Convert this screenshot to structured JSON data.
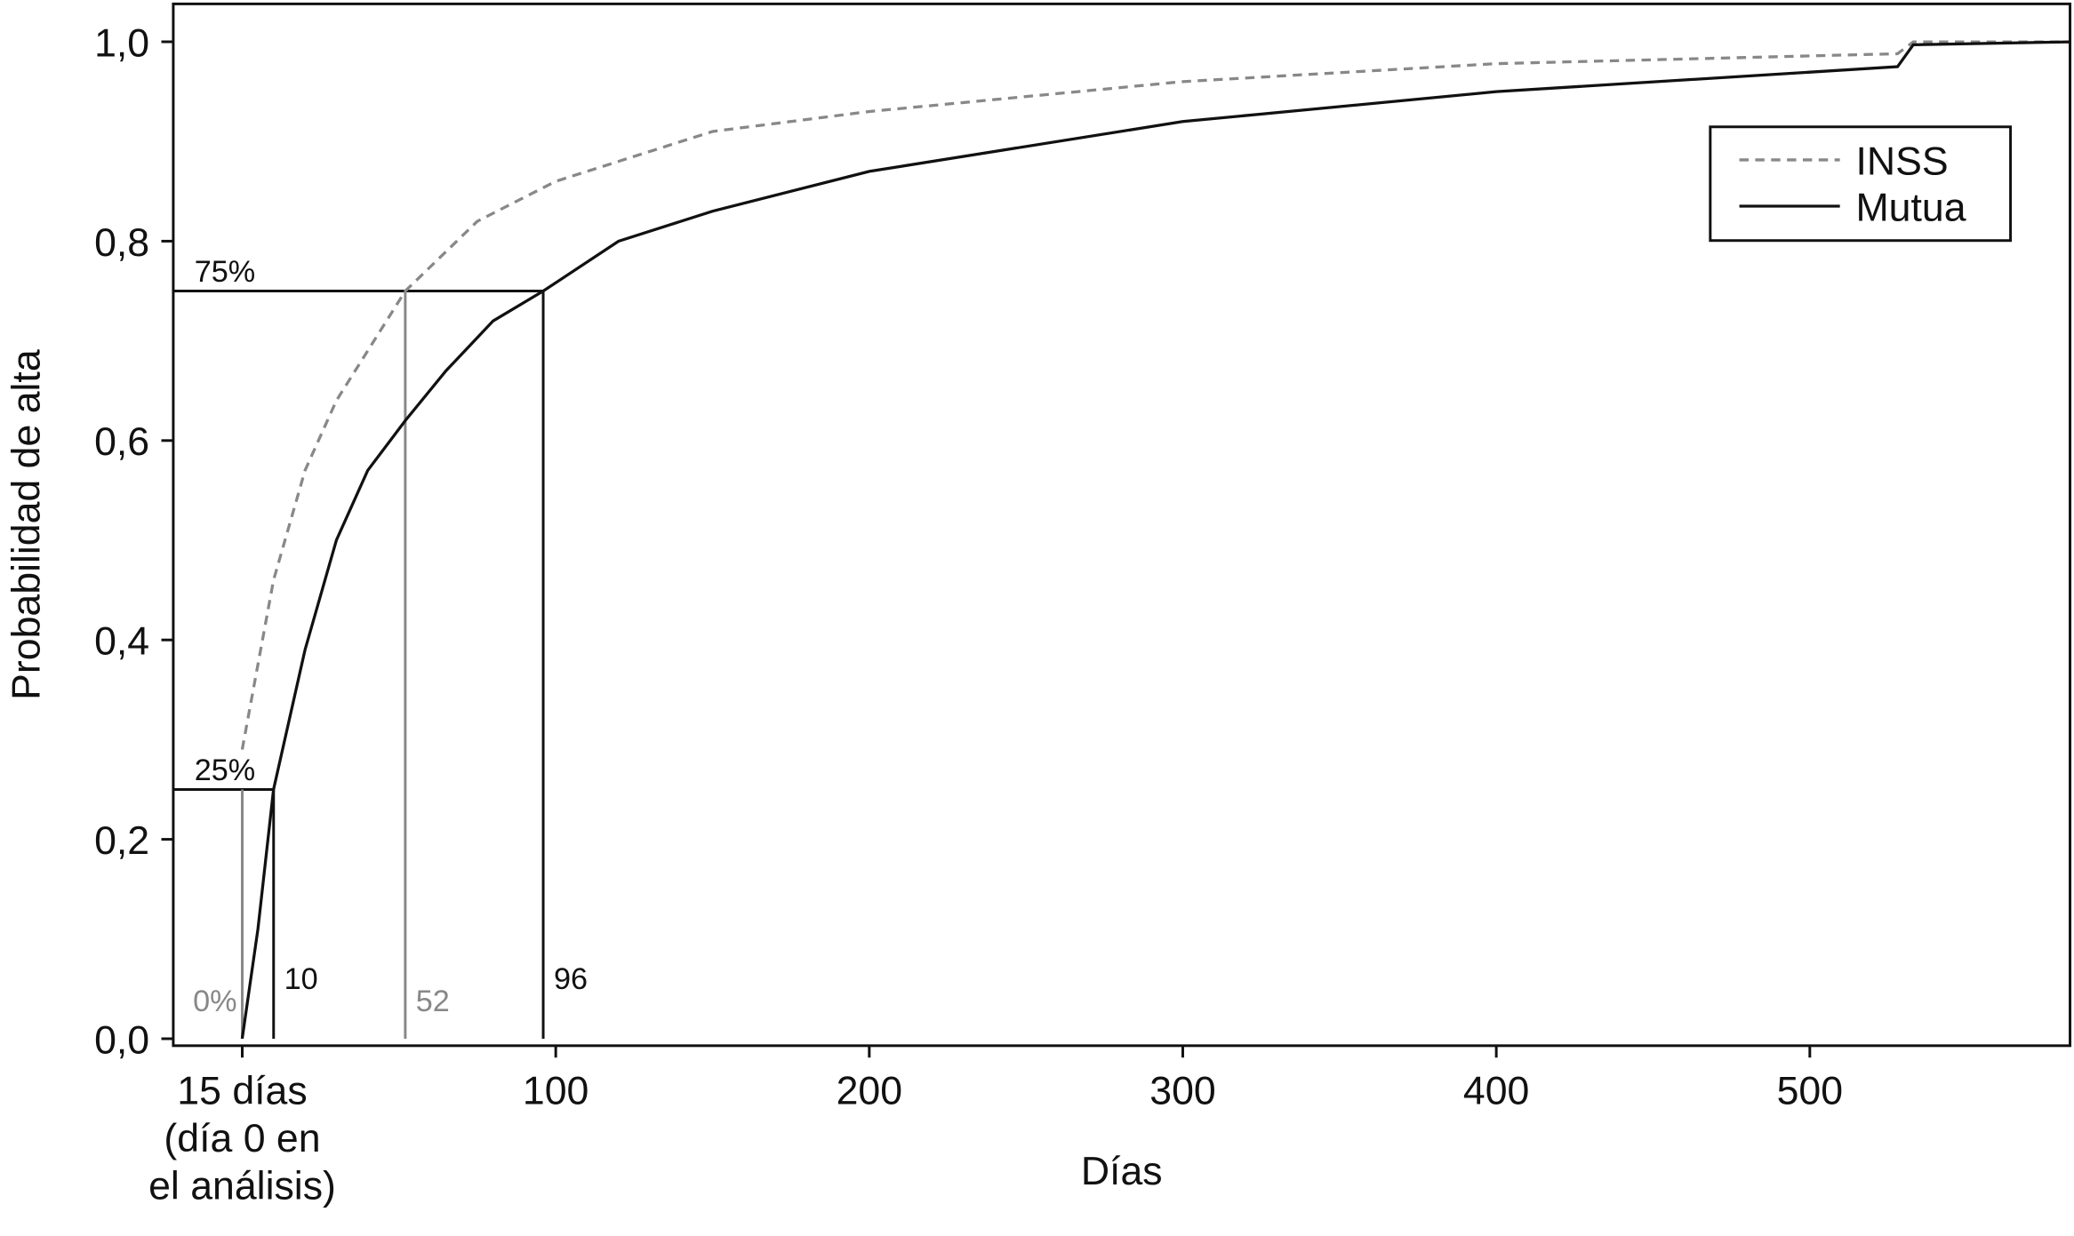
{
  "chart_data": {
    "type": "line",
    "y_label": "Probabilidad de alta",
    "x_label": "Días",
    "xlim": [
      -22,
      583
    ],
    "ylim": [
      -0.007,
      1.038
    ],
    "xticks": [
      {
        "value": 0,
        "label": "15 días\n(día 0 en\nel análisis)"
      },
      100,
      200,
      300,
      400,
      500
    ],
    "yticks": [
      {
        "value": 0,
        "label": "0,0"
      },
      {
        "value": 0.2,
        "label": "0,2"
      },
      {
        "value": 0.4,
        "label": "0,4"
      },
      {
        "value": 0.6,
        "label": "0,6"
      },
      {
        "value": 0.8,
        "label": "0,8"
      },
      {
        "value": 1.0,
        "label": "1,0"
      }
    ],
    "legend": "upper right",
    "series": [
      {
        "name": "INSS",
        "color": "#888888",
        "dashed": true,
        "x": [
          0,
          10,
          20,
          30,
          52,
          75,
          100,
          150,
          200,
          300,
          400,
          528,
          533,
          583
        ],
        "values": [
          0.29,
          0.46,
          0.57,
          0.64,
          0.75,
          0.82,
          0.86,
          0.91,
          0.93,
          0.96,
          0.978,
          0.988,
          1.0,
          1.0
        ]
      },
      {
        "name": "Mutua",
        "color": "#111111",
        "dashed": false,
        "x": [
          0,
          5,
          10,
          20,
          30,
          40,
          52,
          65,
          80,
          96,
          120,
          150,
          200,
          300,
          400,
          528,
          533,
          583
        ],
        "values": [
          0,
          0.11,
          0.25,
          0.39,
          0.5,
          0.57,
          0.62,
          0.67,
          0.72,
          0.75,
          0.8,
          0.83,
          0.87,
          0.92,
          0.95,
          0.975,
          0.997,
          1.0
        ]
      }
    ],
    "levels": [
      {
        "y": 0.25,
        "x": 10,
        "label": "25%"
      },
      {
        "y": 0.75,
        "x": 96,
        "label": "75%"
      }
    ],
    "markers": [
      {
        "x": 0,
        "y": 0.25,
        "label": "0%",
        "color": "#888888"
      },
      {
        "x": 10,
        "y": 0.25,
        "label": "10",
        "color": "#111111"
      },
      {
        "x": 52,
        "y": 0.75,
        "label": "52",
        "color": "#888888"
      },
      {
        "x": 96,
        "y": 0.75,
        "label": "96",
        "color": "#111111"
      }
    ]
  }
}
